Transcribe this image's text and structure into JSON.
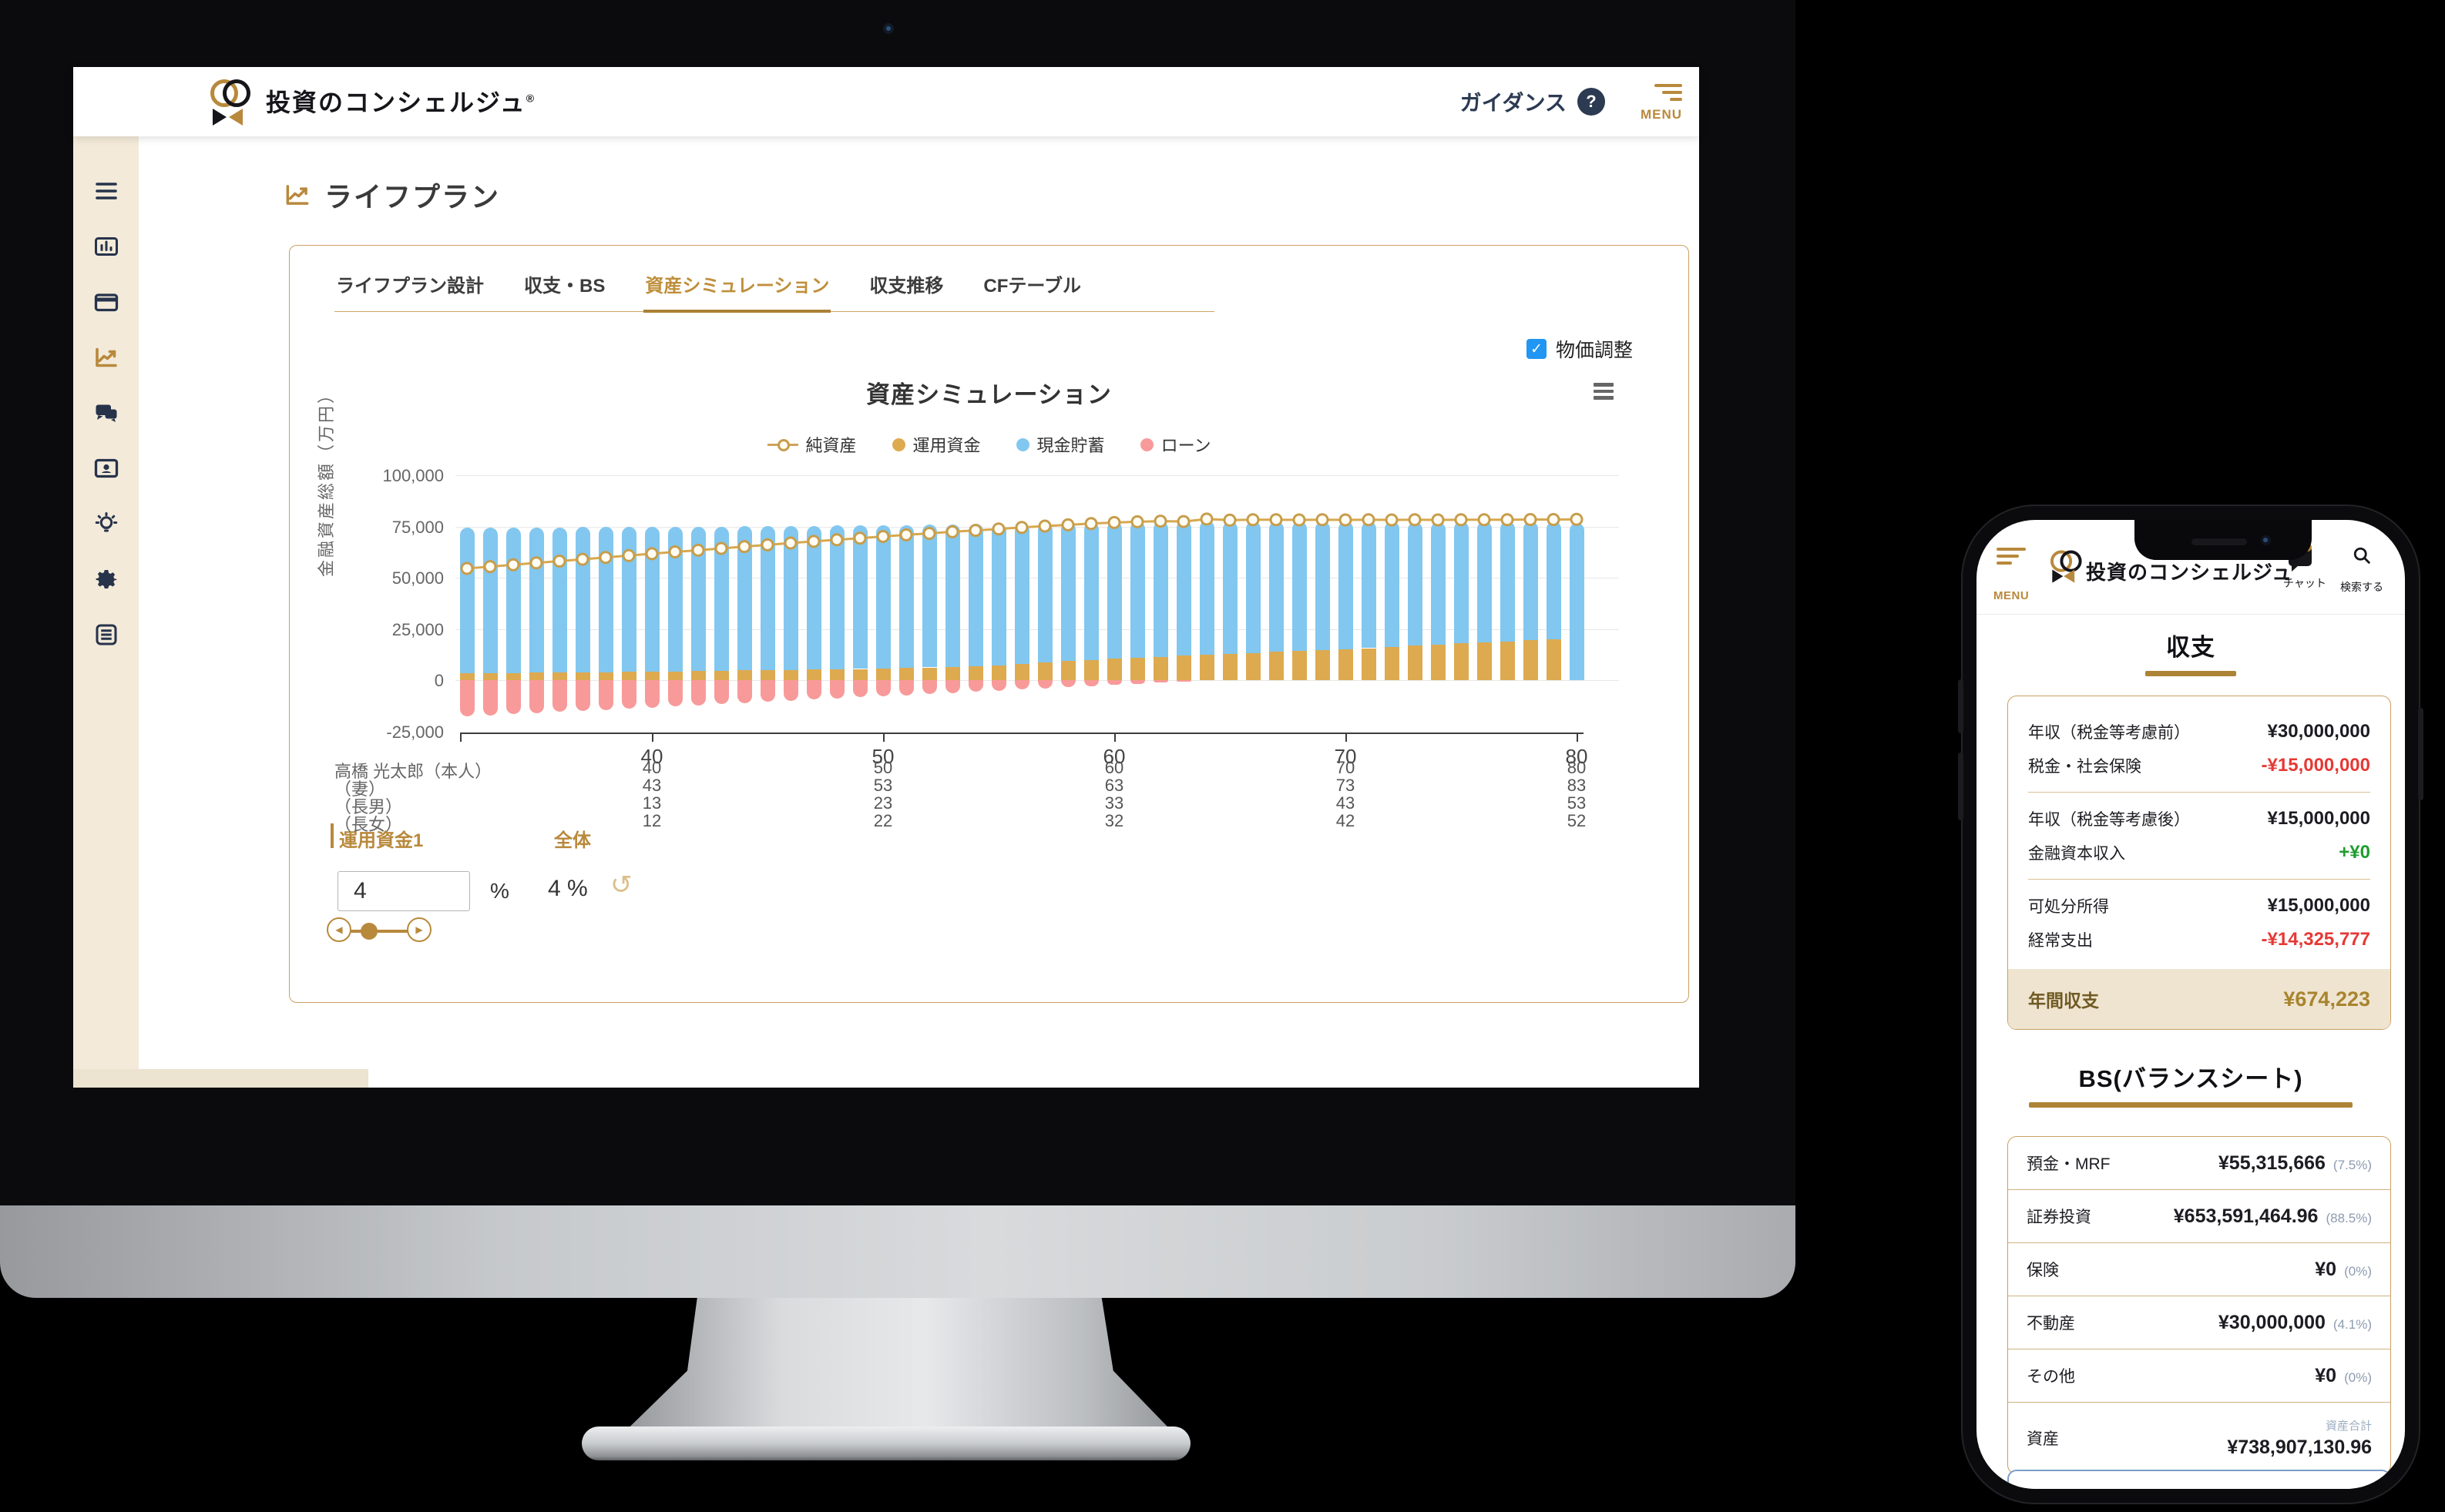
{
  "colors": {
    "brand_gold": "#b8893c",
    "gold_border": "#c9a063",
    "navy": "#2c3a52",
    "tab_active": "#bf8f3c",
    "checkbox_blue": "#2196f3",
    "bar_cash": "#82c7ef",
    "bar_invest": "#ddaa50",
    "bar_loan": "#f89a9a",
    "line_networth": "#d7a84f",
    "negative_red": "#e53935",
    "positive_green": "#1f9d2f",
    "highlight_bg": "#efe4d0",
    "highlight_text": "#a8842f",
    "percent_gray": "#8d9bb0",
    "sidebar_cream": "#f3ead9"
  },
  "desktop": {
    "header": {
      "brand": "投資のコンシェルジュ",
      "brand_reg": "®",
      "guidance_label": "ガイダンス",
      "help_glyph": "?",
      "menu_label": "MENU"
    },
    "sidebar_icons": [
      "menu",
      "bar-chart",
      "credit-card",
      "line-chart",
      "chat",
      "id-card",
      "idea",
      "settings",
      "document"
    ],
    "page_title": "ライフプラン",
    "tabs": [
      {
        "label": "ライフプラン設計",
        "active": false
      },
      {
        "label": "収支・BS",
        "active": false
      },
      {
        "label": "資産シミュレーション",
        "active": true
      },
      {
        "label": "収支推移",
        "active": false
      },
      {
        "label": "CFテーブル",
        "active": false
      }
    ],
    "price_adjust": {
      "label": "物価調整",
      "checked": true,
      "check_glyph": "✓"
    },
    "controls": {
      "fund_label": "運用資金1",
      "overall_label": "全体",
      "fund_value": "4",
      "percent_sign": "%",
      "overall_value": "4 %",
      "reset_glyph": "↺",
      "slider_left_glyph": "◀",
      "slider_right_glyph": "▶"
    }
  },
  "chart_data": {
    "type": "bar",
    "subtype": "stacked-column-with-line",
    "title": "資産シミュレーション",
    "ylabel": "金融資産総額（万円）",
    "ylim": [
      -25000,
      100000
    ],
    "grid": true,
    "legend_position": "top-center",
    "yticks": [
      {
        "v": 100000,
        "label": "100,000",
        "grid": true
      },
      {
        "v": 75000,
        "label": "75,000",
        "grid": true
      },
      {
        "v": 50000,
        "label": "50,000",
        "grid": true
      },
      {
        "v": 25000,
        "label": "25,000",
        "grid": true
      },
      {
        "v": 0,
        "label": "0",
        "grid": true
      },
      {
        "v": -25000,
        "label": "-25,000",
        "grid": false
      }
    ],
    "age_start": 32,
    "age_end": 80,
    "xticks": [
      40,
      50,
      60,
      70,
      80
    ],
    "legend": [
      {
        "label": "純資産",
        "type": "line-marker",
        "color": "#cfa45b"
      },
      {
        "label": "運用資金",
        "type": "dot",
        "color": "#ddaa50"
      },
      {
        "label": "現金貯蓄",
        "type": "dot",
        "color": "#82c7ef"
      },
      {
        "label": "ローン",
        "type": "dot",
        "color": "#f89a9a"
      }
    ],
    "series": [
      {
        "name": "運用資金",
        "role": "stack-bottom",
        "values": [
          3300,
          3400,
          3500,
          3600,
          3700,
          3800,
          3900,
          4000,
          4100,
          4250,
          4400,
          4550,
          4700,
          4850,
          5000,
          5150,
          5300,
          5450,
          5600,
          5900,
          6200,
          6500,
          6800,
          7200,
          7900,
          8600,
          9400,
          9900,
          10400,
          10900,
          11400,
          11850,
          12300,
          12800,
          13300,
          13750,
          14200,
          14600,
          15000,
          15600,
          16200,
          16800,
          17400,
          17900,
          18400,
          18950,
          19500,
          20000,
          0
        ]
      },
      {
        "name": "現金貯蓄",
        "role": "stack-top",
        "values": [
          71000,
          70960,
          70930,
          70900,
          70860,
          70830,
          70800,
          70750,
          70700,
          70610,
          70530,
          70450,
          70350,
          70250,
          70200,
          70150,
          70100,
          70050,
          70000,
          69850,
          69700,
          69550,
          69400,
          69100,
          68600,
          68100,
          67600,
          67250,
          66900,
          66500,
          66200,
          65850,
          65700,
          64800,
          64200,
          63750,
          63200,
          62800,
          62300,
          61700,
          61100,
          60400,
          59800,
          59400,
          58900,
          58350,
          57800,
          57300,
          76800
        ]
      },
      {
        "name": "ローン",
        "role": "stack-negative",
        "values": [
          -17800,
          -17250,
          -16700,
          -16150,
          -15600,
          -15050,
          -14500,
          -13950,
          -13400,
          -12850,
          -12300,
          -11750,
          -11200,
          -10650,
          -10100,
          -9550,
          -9000,
          -8450,
          -7900,
          -7350,
          -6800,
          -6250,
          -5700,
          -5150,
          -4600,
          -4050,
          -3500,
          -2950,
          -2400,
          -1850,
          -1300,
          -750,
          0,
          0,
          0,
          0,
          0,
          0,
          0,
          0,
          0,
          0,
          0,
          0,
          0,
          0,
          0,
          0,
          0
        ]
      },
      {
        "name": "純資産",
        "role": "line",
        "values": [
          54500,
          55400,
          56300,
          57200,
          58100,
          59000,
          59900,
          60800,
          61700,
          62600,
          63400,
          64300,
          65200,
          66000,
          66900,
          67700,
          68500,
          69300,
          70100,
          70900,
          71600,
          72400,
          73100,
          73800,
          74500,
          75200,
          75800,
          76400,
          76900,
          77300,
          77600,
          77400,
          78600,
          78100,
          78300,
          78300,
          78200,
          78300,
          78200,
          78300,
          78200,
          78300,
          78200,
          78300,
          78300,
          78300,
          78400,
          78400,
          78500
        ]
      }
    ],
    "x_axis_table": {
      "rows": [
        {
          "label": "高橋 光太郎（本人）",
          "values": [
            "40",
            "50",
            "60",
            "70",
            "80"
          ]
        },
        {
          "label": "（妻）",
          "values": [
            "43",
            "53",
            "63",
            "73",
            "83"
          ]
        },
        {
          "label": "（長男）",
          "values": [
            "13",
            "23",
            "33",
            "43",
            "53"
          ]
        },
        {
          "label": "（長女）",
          "values": [
            "12",
            "22",
            "32",
            "42",
            "52"
          ]
        }
      ]
    }
  },
  "phone": {
    "header": {
      "menu_label": "MENU",
      "brand": "投資のコンシェルジュ",
      "chat_label": "チャット",
      "search_label": "検索する"
    },
    "income_section": {
      "title": "収支",
      "rows": [
        {
          "kind": "item",
          "label": "年収（税金等考慮前）",
          "value": "¥30,000,000",
          "tone": "normal"
        },
        {
          "kind": "item",
          "label": "税金・社会保険",
          "value": "-¥15,000,000",
          "tone": "negative"
        },
        {
          "kind": "divider"
        },
        {
          "kind": "item",
          "label": "年収（税金等考慮後）",
          "value": "¥15,000,000",
          "tone": "normal"
        },
        {
          "kind": "item",
          "label": "金融資本収入",
          "value": "+¥0",
          "tone": "positive"
        },
        {
          "kind": "divider"
        },
        {
          "kind": "item",
          "label": "可処分所得",
          "value": "¥15,000,000",
          "tone": "normal"
        },
        {
          "kind": "item",
          "label": "経常支出",
          "value": "-¥14,325,777",
          "tone": "negative"
        }
      ],
      "total_row": {
        "label": "年間収支",
        "value": "¥674,223"
      }
    },
    "bs_section": {
      "title": "BS(バランスシート)",
      "rows": [
        {
          "label": "預金・MRF",
          "value": "¥55,315,666",
          "pct": "(7.5%)"
        },
        {
          "label": "証券投資",
          "value": "¥653,591,464.96",
          "pct": "(88.5%)"
        },
        {
          "label": "保険",
          "value": "¥0",
          "pct": "(0%)"
        },
        {
          "label": "不動産",
          "value": "¥30,000,000",
          "pct": "(4.1%)"
        },
        {
          "label": "その他",
          "value": "¥0",
          "pct": "(0%)"
        }
      ],
      "total_row": {
        "sub_label": "資産合計",
        "label": "資産",
        "value": "¥738,907,130.96"
      }
    }
  }
}
